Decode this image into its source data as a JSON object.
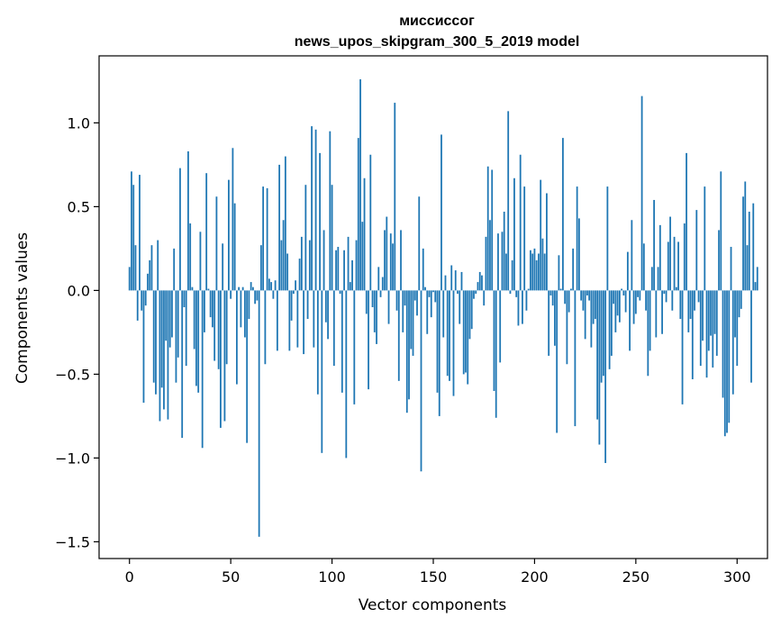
{
  "chart_data": {
    "type": "bar",
    "title_line1": "миссиссог",
    "title_line2": "news_upos_skipgram_300_5_2019 model",
    "xlabel": "Vector components",
    "ylabel": "Components values",
    "xlim": [
      -15,
      315
    ],
    "ylim": [
      -1.6,
      1.4
    ],
    "x_ticks": [
      0,
      50,
      100,
      150,
      200,
      250,
      300
    ],
    "x_tick_labels": [
      "0",
      "50",
      "100",
      "150",
      "200",
      "250",
      "300"
    ],
    "y_ticks": [
      -1.5,
      -1.0,
      -0.5,
      0.0,
      0.5,
      1.0
    ],
    "y_tick_labels": [
      "−1.5",
      "−1.0",
      "−0.5",
      "0.0",
      "0.5",
      "1.0"
    ],
    "bar_color": "#1f77b4",
    "grid": false,
    "legend": "none",
    "values": [
      0.14,
      0.71,
      0.63,
      0.27,
      -0.18,
      0.69,
      -0.12,
      -0.67,
      -0.09,
      0.1,
      0.18,
      0.27,
      -0.55,
      -0.62,
      0.3,
      -0.78,
      -0.58,
      -0.71,
      -0.3,
      -0.77,
      -0.34,
      -0.28,
      0.25,
      -0.55,
      -0.4,
      0.73,
      -0.88,
      -0.1,
      -0.45,
      0.83,
      0.4,
      0.02,
      -0.35,
      -0.57,
      -0.61,
      0.35,
      -0.94,
      -0.25,
      0.7,
      0.01,
      -0.16,
      -0.22,
      -0.42,
      0.56,
      -0.47,
      -0.82,
      0.28,
      -0.78,
      -0.44,
      0.66,
      -0.05,
      0.85,
      0.52,
      -0.56,
      0.02,
      -0.22,
      0.02,
      -0.28,
      -0.91,
      -0.17,
      0.05,
      0.02,
      -0.08,
      -0.06,
      -1.47,
      0.27,
      0.62,
      -0.44,
      0.61,
      0.07,
      0.05,
      -0.05,
      0.06,
      -0.36,
      0.75,
      0.3,
      0.42,
      0.8,
      0.22,
      -0.36,
      -0.18,
      -0.02,
      0.06,
      -0.34,
      0.19,
      0.32,
      -0.38,
      0.63,
      -0.17,
      0.3,
      0.98,
      -0.34,
      0.96,
      -0.62,
      0.82,
      -0.97,
      0.36,
      -0.19,
      -0.29,
      0.95,
      0.63,
      -0.45,
      0.24,
      0.26,
      -0.02,
      -0.61,
      0.24,
      -1.0,
      0.32,
      0.05,
      0.18,
      -0.68,
      0.3,
      0.91,
      1.26,
      0.41,
      0.67,
      -0.14,
      -0.59,
      0.81,
      -0.1,
      -0.25,
      -0.32,
      0.14,
      -0.04,
      0.08,
      0.36,
      0.44,
      -0.2,
      0.34,
      0.28,
      1.12,
      -0.12,
      -0.54,
      0.36,
      -0.25,
      -0.09,
      -0.73,
      -0.65,
      -0.35,
      -0.39,
      -0.06,
      -0.15,
      0.56,
      -1.08,
      0.25,
      0.02,
      -0.26,
      -0.04,
      -0.16,
      -0.01,
      -0.07,
      -0.61,
      -0.75,
      0.93,
      -0.28,
      0.09,
      -0.51,
      -0.54,
      0.15,
      -0.63,
      0.12,
      -0.02,
      -0.2,
      0.11,
      -0.5,
      -0.49,
      -0.56,
      -0.29,
      -0.23,
      -0.05,
      -0.02,
      0.05,
      0.11,
      0.09,
      -0.09,
      0.32,
      0.74,
      0.42,
      0.72,
      -0.6,
      -0.76,
      0.34,
      -0.43,
      0.35,
      0.47,
      0.22,
      1.07,
      -0.02,
      0.18,
      0.67,
      -0.04,
      -0.21,
      0.81,
      -0.2,
      0.62,
      -0.12,
      0.01,
      0.24,
      0.22,
      0.25,
      0.18,
      0.22,
      0.66,
      0.31,
      0.22,
      0.58,
      -0.39,
      -0.03,
      -0.09,
      -0.33,
      -0.85,
      0.21,
      0.01,
      0.91,
      -0.08,
      -0.44,
      -0.13,
      0.01,
      0.25,
      -0.81,
      0.62,
      0.43,
      -0.06,
      -0.12,
      -0.29,
      -0.03,
      -0.06,
      -0.34,
      -0.2,
      -0.17,
      -0.77,
      -0.92,
      -0.55,
      -0.51,
      -1.03,
      0.62,
      -0.47,
      -0.39,
      -0.08,
      -0.25,
      -0.15,
      -0.19,
      0.01,
      -0.03,
      -0.13,
      0.23,
      -0.36,
      0.42,
      -0.2,
      -0.14,
      -0.04,
      -0.06,
      1.16,
      0.28,
      -0.12,
      -0.51,
      -0.36,
      0.14,
      0.54,
      -0.28,
      0.14,
      0.39,
      -0.26,
      -0.02,
      -0.07,
      0.29,
      0.44,
      -0.12,
      0.32,
      0.02,
      0.29,
      -0.17,
      -0.68,
      0.4,
      0.82,
      -0.25,
      -0.17,
      -0.53,
      -0.12,
      0.48,
      -0.07,
      -0.45,
      -0.3,
      0.62,
      -0.52,
      -0.36,
      -0.27,
      -0.46,
      -0.26,
      -0.39,
      0.36,
      0.71,
      -0.64,
      -0.87,
      -0.85,
      -0.79,
      0.26,
      -0.62,
      -0.28,
      -0.45,
      -0.16,
      -0.11,
      0.56,
      0.65,
      0.27,
      0.47,
      -0.55,
      0.52,
      0.05,
      0.14
    ]
  }
}
